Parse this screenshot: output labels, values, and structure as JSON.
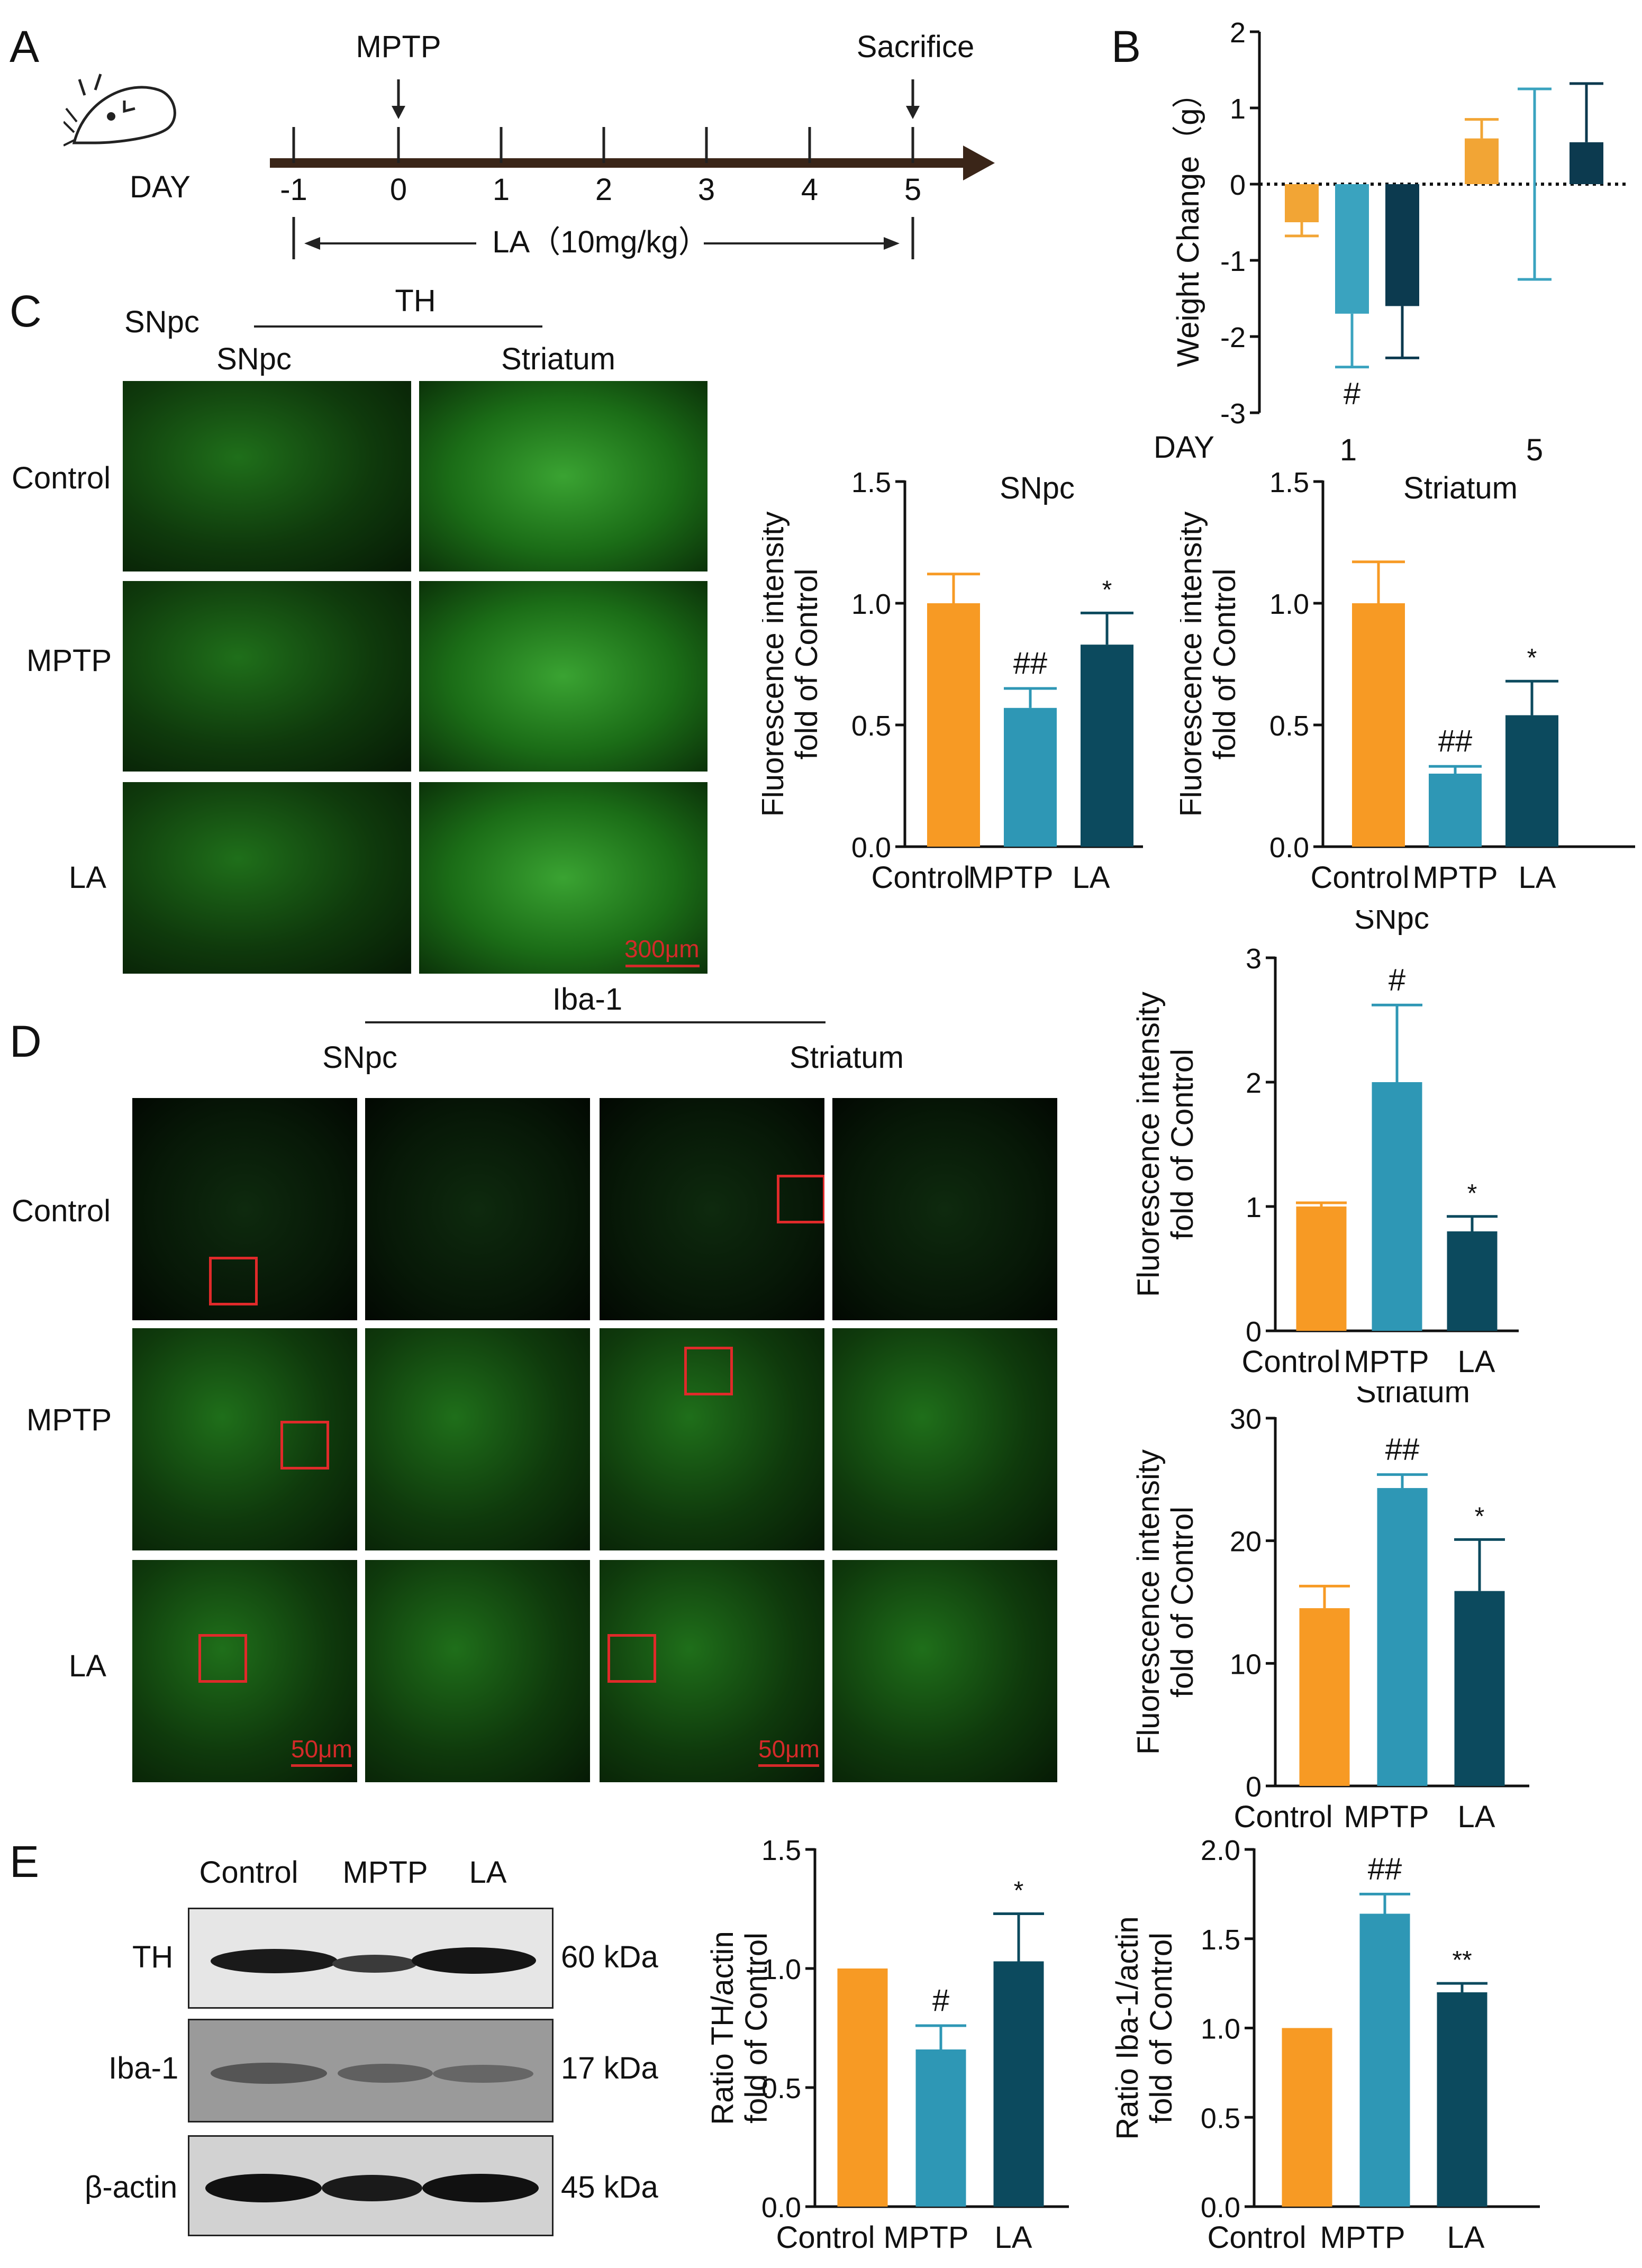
{
  "panels": {
    "A": "A",
    "B": "B",
    "C": "C",
    "D": "D",
    "E": "E"
  },
  "panelA": {
    "day_label": "DAY",
    "mptp_label": "MPTP",
    "sacrifice_label": "Sacrifice",
    "ticks": [
      "-1",
      "0",
      "1",
      "2",
      "3",
      "4",
      "5"
    ],
    "la_label": "LA（10mg/kg）"
  },
  "panelC": {
    "row_header": "SNpc",
    "group_header": "TH",
    "col_snpc": "SNpc",
    "col_striatum": "Striatum",
    "rows": [
      "Control",
      "MPTP",
      "LA"
    ],
    "scale_bar": "300μm"
  },
  "panelD": {
    "group_header": "Iba-1",
    "col_snpc": "SNpc",
    "col_striatum": "Striatum",
    "rows": [
      "Control",
      "MPTP",
      "LA"
    ],
    "scale_bar_1": "50μm",
    "scale_bar_2": "50μm"
  },
  "panelE": {
    "lanes": [
      "Control",
      "MPTP",
      "LA"
    ],
    "blots": [
      {
        "name": "TH",
        "kda": "60 kDa"
      },
      {
        "name": "Iba-1",
        "kda": "17 kDa"
      },
      {
        "name": "β-actin",
        "kda": "45 kDa"
      }
    ]
  },
  "colors": {
    "control": "#F79A24",
    "mptp": "#2E97B5",
    "la": "#0C4A5E",
    "panelB_control": "#F2A535",
    "panelB_mptp": "#3AA3BF",
    "panelB_la": "#0C3A4F",
    "scale_bar": "#D42A2A",
    "roi_box": "#E02A2A"
  },
  "chart_data": [
    {
      "id": "weight",
      "type": "bar",
      "title": "",
      "xlabel": "DAY",
      "ylabel": "Weight Change（g）",
      "categories": [
        "1",
        "5"
      ],
      "ylim": [
        -3,
        2
      ],
      "yticks": [
        -3,
        -2,
        -1,
        0,
        1,
        2
      ],
      "series": [
        {
          "values": [
            -0.5,
            0.6
          ],
          "errors": [
            0.18,
            0.25
          ]
        },
        {
          "values": [
            -1.7,
            0.0
          ],
          "errors": [
            0.7,
            1.25
          ]
        },
        {
          "values": [
            -1.6,
            0.55
          ],
          "errors": [
            0.68,
            0.77
          ]
        }
      ],
      "annotations": [
        {
          "category": "1",
          "series": 1,
          "text": "#"
        }
      ]
    },
    {
      "id": "th_snpc",
      "type": "bar",
      "title": "SNpc",
      "ylabel": "Fluorescence intensity\nfold of Control",
      "categories": [
        "Control",
        "MPTP",
        "LA"
      ],
      "values": [
        1.0,
        0.57,
        0.83
      ],
      "errors": [
        0.12,
        0.08,
        0.13
      ],
      "ylim": [
        0,
        1.5
      ],
      "yticks": [
        0.0,
        0.5,
        1.0,
        1.5
      ],
      "annotations": [
        "",
        "##",
        "*"
      ]
    },
    {
      "id": "th_striatum",
      "type": "bar",
      "title": "Striatum",
      "ylabel": "Fluorescence intensity\nfold of Control",
      "categories": [
        "Control",
        "MPTP",
        "LA"
      ],
      "values": [
        1.0,
        0.3,
        0.54
      ],
      "errors": [
        0.17,
        0.03,
        0.14
      ],
      "ylim": [
        0,
        1.5
      ],
      "yticks": [
        0.0,
        0.5,
        1.0,
        1.5
      ],
      "annotations": [
        "",
        "##",
        "*"
      ]
    },
    {
      "id": "iba_snpc",
      "type": "bar",
      "title": "SNpc",
      "ylabel": "Fluorescence intensity\nfold of Control",
      "categories": [
        "Control",
        "MPTP",
        "LA"
      ],
      "values": [
        1.0,
        2.0,
        0.8
      ],
      "errors": [
        0.03,
        0.62,
        0.12
      ],
      "ylim": [
        0,
        3
      ],
      "yticks": [
        0,
        1,
        2,
        3
      ],
      "annotations": [
        "",
        "#",
        "*"
      ]
    },
    {
      "id": "iba_striatum",
      "type": "bar",
      "title": "Striatum",
      "ylabel": "Fluorescence intensity\nfold of Control",
      "categories": [
        "Control",
        "MPTP",
        "LA"
      ],
      "values": [
        14.5,
        24.3,
        15.9
      ],
      "errors": [
        1.8,
        1.1,
        4.2
      ],
      "ylim": [
        0,
        30
      ],
      "yticks": [
        0,
        10,
        20,
        30
      ],
      "annotations": [
        "",
        "##",
        "*"
      ]
    },
    {
      "id": "wb_th",
      "type": "bar",
      "title": "",
      "ylabel": "Ratio TH/actin\nfold of Control",
      "categories": [
        "Control",
        "MPTP",
        "LA"
      ],
      "values": [
        1.0,
        0.66,
        1.03
      ],
      "errors": [
        0.0,
        0.1,
        0.2
      ],
      "ylim": [
        0,
        1.5
      ],
      "yticks": [
        0.0,
        0.5,
        1.0,
        1.5
      ],
      "annotations": [
        "",
        "#",
        "*"
      ]
    },
    {
      "id": "wb_iba",
      "type": "bar",
      "title": "",
      "ylabel": "Ratio Iba-1/actin\nfold of Control",
      "categories": [
        "Control",
        "MPTP",
        "LA"
      ],
      "values": [
        1.0,
        1.64,
        1.2
      ],
      "errors": [
        0.0,
        0.11,
        0.05
      ],
      "ylim": [
        0,
        2.0
      ],
      "yticks": [
        0.0,
        0.5,
        1.0,
        1.5,
        2.0
      ],
      "annotations": [
        "",
        "##",
        "**"
      ]
    }
  ]
}
